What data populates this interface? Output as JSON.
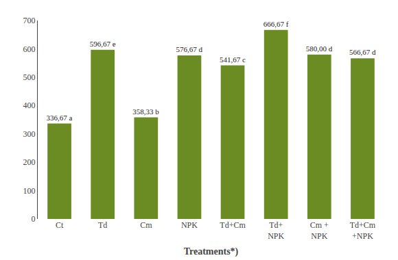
{
  "chart_data": {
    "type": "bar",
    "xlabel": "Treatments*)",
    "categories": [
      "Ct",
      "Td",
      "Cm",
      "NPK",
      "Td+Cm",
      "Td+\nNPK",
      "Cm +\nNPK",
      "Td+Cm\n+NPK"
    ],
    "values": [
      336.67,
      596.67,
      358.33,
      576.67,
      541.67,
      666.67,
      580.0,
      566.67
    ],
    "value_labels": [
      "336,67 a",
      "596,67 e",
      "358,33 b",
      "576,67 d",
      "541,67 c",
      "666,67 f",
      "580,00 d",
      "566,67 d"
    ],
    "data_labels": true,
    "color": "#6b8c23",
    "ylim": [
      0,
      700
    ],
    "yticks": [
      0,
      100,
      200,
      300,
      400,
      500,
      600,
      700
    ],
    "grid": false
  }
}
